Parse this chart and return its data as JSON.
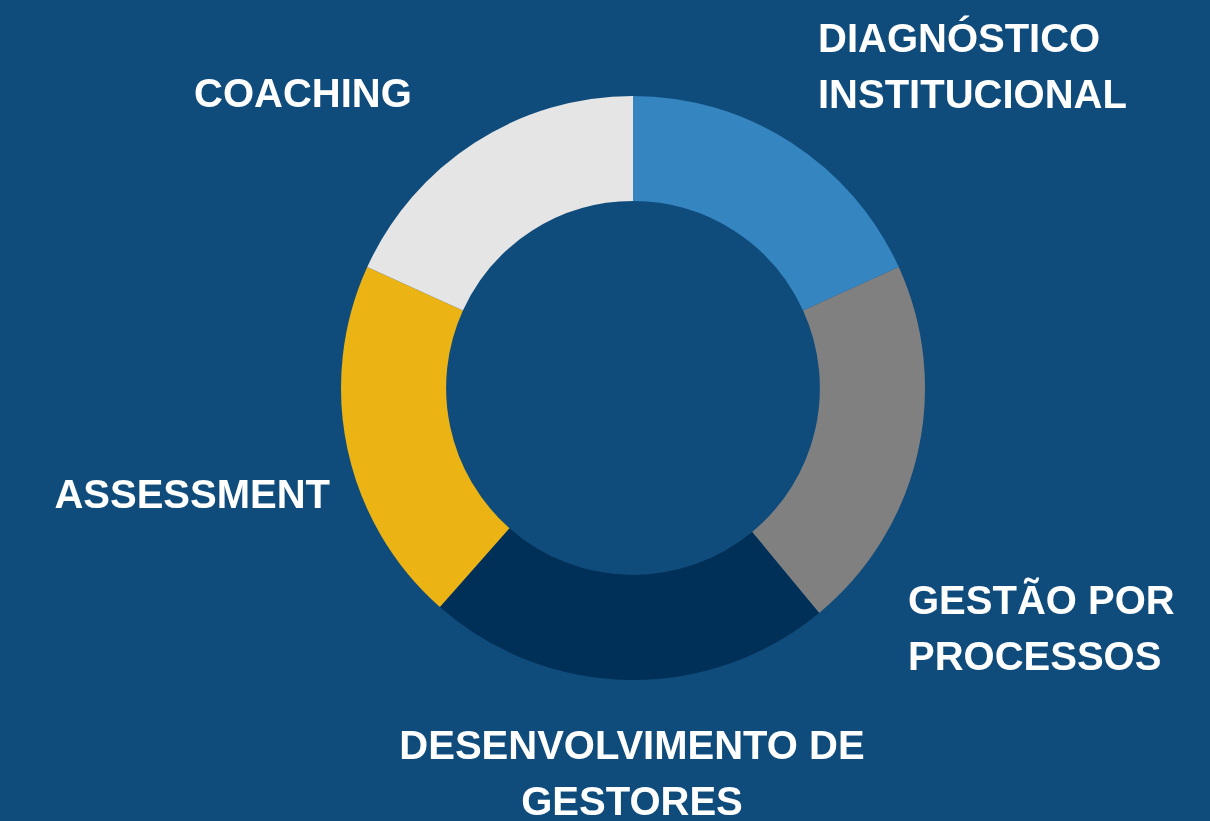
{
  "chart_data": {
    "type": "donut",
    "categories": [
      "DIAGNÓSTICO INSTITUCIONAL",
      "GESTÃO POR PROCESSOS",
      "DESENVOLVIMENTO DE GESTORES",
      "ASSESSMENT",
      "COACHING"
    ],
    "values": [
      18.2,
      20.8,
      22.5,
      20.3,
      18.2
    ],
    "colors": [
      "#3585c0",
      "#808080",
      "#003057",
      "#ebb314",
      "#e5e5e5"
    ],
    "legend": false
  }
}
